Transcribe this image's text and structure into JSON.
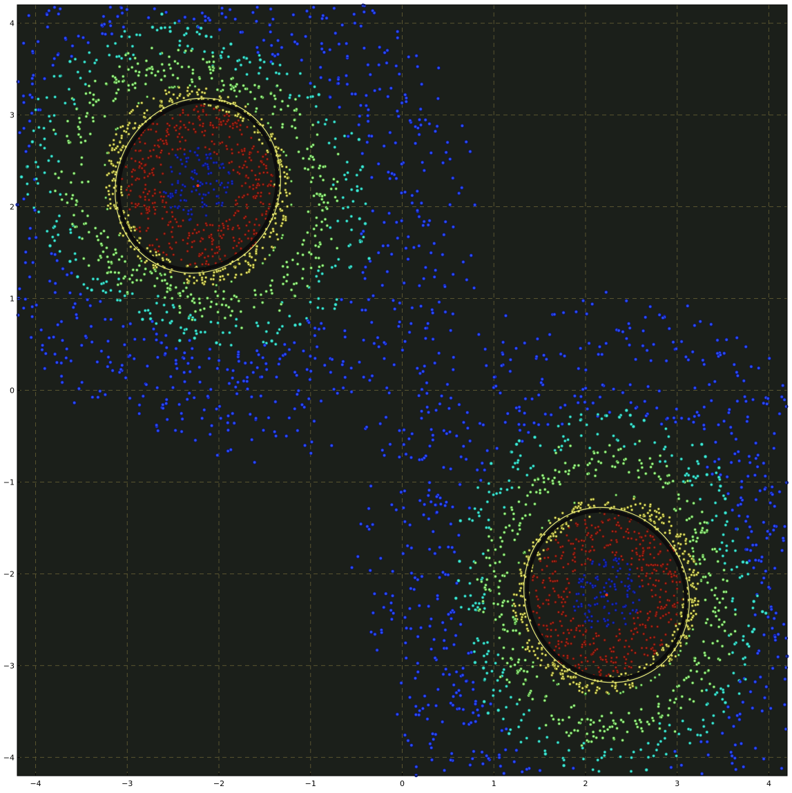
{
  "chart_data": {
    "type": "scatter",
    "title": "",
    "xlabel": "",
    "ylabel": "",
    "xlim": [
      -4.2,
      4.2
    ],
    "ylim": [
      -4.2,
      4.2
    ],
    "xticks": [
      -4,
      -3,
      -2,
      -1,
      0,
      1,
      2,
      3,
      4
    ],
    "yticks": [
      -4,
      -3,
      -2,
      -1,
      0,
      1,
      2,
      3,
      4
    ],
    "xtick_labels": [
      "−4",
      "−3",
      "−2",
      "−1",
      "0",
      "1",
      "2",
      "3",
      "4"
    ],
    "ytick_labels": [
      "−4",
      "−3",
      "−2",
      "−1",
      "0",
      "1",
      "2",
      "3",
      "4"
    ],
    "grid": true,
    "colors": {
      "background": "#1b1f1a",
      "grid": "#5a5530",
      "outer": "#1d24d8",
      "cyan": "#3ee6d2",
      "yellow": "#e8e87a",
      "red": "#a8281c",
      "inner": "#1b2fb8",
      "ring": "#0c0c0c",
      "center": "#ff3a1a"
    },
    "clusters": [
      {
        "center": [
          -2.23,
          2.23
        ],
        "ring_semi_axes": [
          0.85,
          0.93
        ],
        "ring_rotation_deg": 25,
        "halo_extent": 1.9
      },
      {
        "center": [
          2.23,
          -2.23
        ],
        "ring_semi_axes": [
          0.85,
          0.93
        ],
        "ring_rotation_deg": 25,
        "halo_extent": 1.9
      }
    ]
  }
}
